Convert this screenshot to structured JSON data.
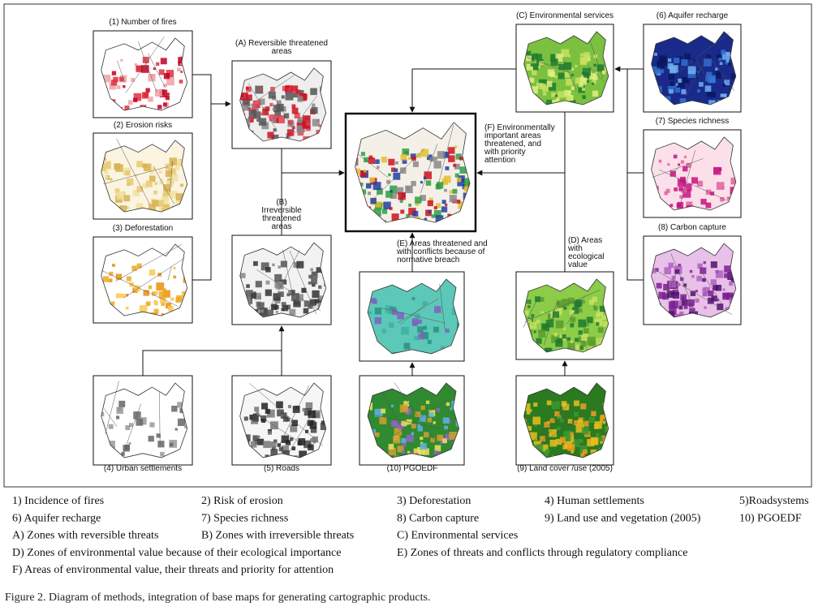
{
  "nodes": [
    {
      "label_lines": [
        "(1) Number of fires"
      ]
    },
    {
      "label_lines": [
        "(2) Erosion risks"
      ]
    },
    {
      "label_lines": [
        "(3) Deforestation"
      ]
    },
    {
      "label_lines": [
        "(A) Reversible threatened",
        "areas"
      ]
    },
    {
      "label_lines": [
        "(B)",
        "Irreversible",
        "threatened",
        "areas"
      ]
    },
    {
      "label_lines": [
        "(4) Urban settlements"
      ]
    },
    {
      "label_lines": [
        "(5) Roads"
      ]
    },
    {
      "label_lines": [
        "(F) Environmentally",
        "important areas",
        "threatened, and",
        "with priority",
        "attention"
      ]
    },
    {
      "label_lines": [
        "(E) Areas threatened and",
        "with conflicts because of",
        "normative breach"
      ]
    },
    {
      "label_lines": [
        "(10) PGOEDF"
      ]
    },
    {
      "label_lines": [
        "(C) Environmental services"
      ]
    },
    {
      "label_lines": [
        "(D) Areas",
        "with",
        "ecological",
        "value"
      ]
    },
    {
      "label_lines": [
        "(9) Land cover /use (2005)"
      ]
    },
    {
      "label_lines": [
        "(6) Aquifer recharge"
      ]
    },
    {
      "label_lines": [
        "(7) Species richness"
      ]
    },
    {
      "label_lines": [
        "(8) Carbon capture"
      ]
    }
  ],
  "legend": [
    [
      "1) Incidence of fires",
      "2) Risk of erosion",
      "3) Deforestation",
      "4) Human settlements",
      "5)Roadsystems"
    ],
    [
      "6) Aquifer recharge",
      "7) Species richness",
      "8) Carbon capture",
      "9) Land use and vegetation (2005)",
      "10) PGOEDF"
    ],
    [
      "A) Zones with reversible threats",
      "B) Zones with irreversible threats",
      "C) Environmental services"
    ],
    [
      "D) Zones of environmental value because of their ecological importance",
      "E) Zones of threats and conflicts through regulatory compliance"
    ],
    [
      "F) Areas of environmental value, their threats and priority for attention"
    ]
  ],
  "caption": "Figure 2. Diagram of methods, integration of base maps for generating cartographic products."
}
